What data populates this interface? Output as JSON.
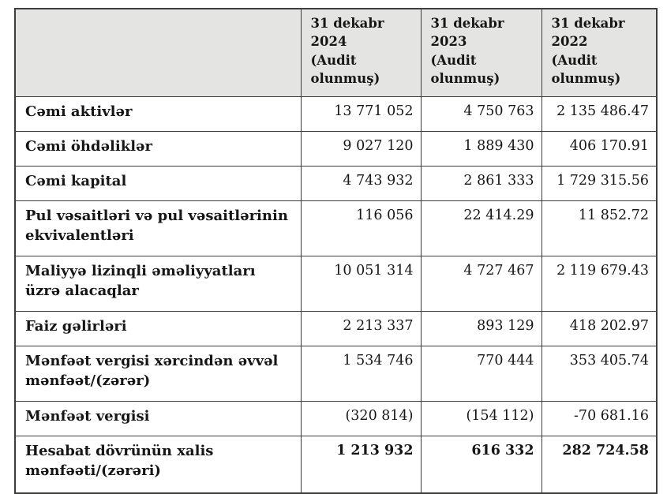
{
  "table": {
    "style": {
      "header_bg": "#e4e4e2",
      "border_color": "#3d3d3b",
      "text_color": "#161616"
    },
    "header": {
      "row_label_column": "",
      "columns": [
        {
          "date": "31 dekabr 2024",
          "note": "(Audit olunmuş)"
        },
        {
          "date": "31 dekabr 2023",
          "note": "(Audit olunmuş)"
        },
        {
          "date": "31 dekabr 2022",
          "note": "(Audit olunmuş)"
        }
      ]
    },
    "rows": [
      {
        "label": "Cəmi aktivlər",
        "values": [
          "13 771 052",
          "4 750 763",
          "2 135 486.47"
        ],
        "bold_values": false
      },
      {
        "label": "Cəmi öhdəliklər",
        "values": [
          "9 027 120",
          "1 889 430",
          "406 170.91"
        ],
        "bold_values": false
      },
      {
        "label": "Cəmi kapital",
        "values": [
          "4 743 932",
          "2 861 333",
          "1 729 315.56"
        ],
        "bold_values": false
      },
      {
        "label": "Pul vəsaitləri və pul vəsaitlərinin ekvivalentləri",
        "values": [
          "116 056",
          "22 414.29",
          "11 852.72"
        ],
        "bold_values": false
      },
      {
        "label": "Maliyyə lizinqli əməliyyatları üzrə alacaqlar",
        "values": [
          "10 051 314",
          "4 727 467",
          "2 119 679.43"
        ],
        "bold_values": false
      },
      {
        "label": "Faiz gəlirləri",
        "values": [
          "2 213 337",
          "893 129",
          "418 202.97"
        ],
        "bold_values": false
      },
      {
        "label": "Mənfəət vergisi xərcindən əvvəl mənfəət/(zərər)",
        "values": [
          "1 534 746",
          "770 444",
          "353 405.74"
        ],
        "bold_values": false
      },
      {
        "label": "Mənfəət vergisi",
        "values": [
          "(320 814)",
          "(154 112)",
          "-70 681.16"
        ],
        "bold_values": false
      },
      {
        "label": "Hesabat dövrünün xalis mənfəəti/(zərəri)",
        "values": [
          "1 213 932",
          "616 332",
          "282 724.58"
        ],
        "bold_values": true
      }
    ]
  }
}
